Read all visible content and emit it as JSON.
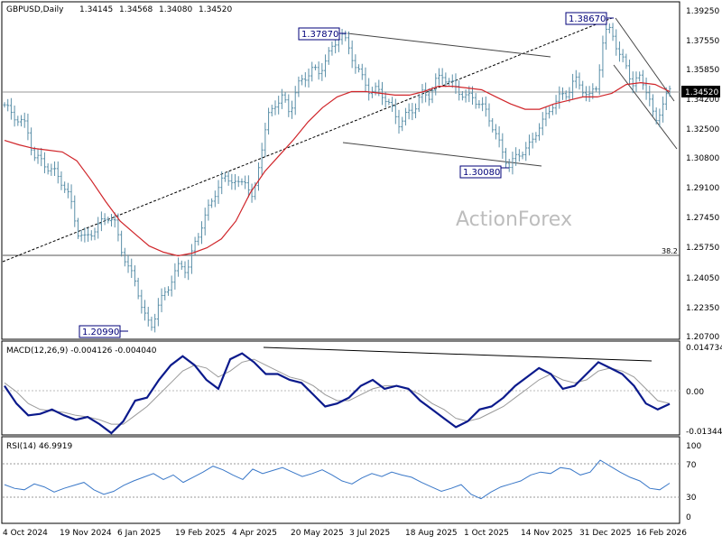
{
  "colors": {
    "background": "#ffffff",
    "bars": "#5a8fa8",
    "ma": "#d0252a",
    "trend": "#000000",
    "channel": "#444444",
    "macd_line": "#0b1a8c",
    "macd_signal": "#9a9a9a",
    "rsi_line": "#3a78c8",
    "callout_border": "#00007a",
    "price_box": "#000000",
    "price_box_text": "#ffffff"
  },
  "chart_data": [
    {
      "type": "ohlc",
      "title": "GBPUSD,Daily",
      "ohlc_header": [
        "1.34145",
        "1.34568",
        "1.34080",
        "1.34520"
      ],
      "current_price": "1.34520",
      "ylim": [
        1.207,
        1.3925
      ],
      "y_ticks": [
        "1.39250",
        "1.37550",
        "1.35850",
        "1.34200",
        "1.32500",
        "1.30800",
        "1.29100",
        "1.27450",
        "1.25750",
        "1.24050",
        "1.22350",
        "1.20700"
      ],
      "x_ticks": [
        "4 Oct 2024",
        "19 Nov 2024",
        "6 Jan 2025",
        "19 Feb 2025",
        "4 Apr 2025",
        "20 May 2025",
        "3 Jul 2025",
        "18 Aug 2025",
        "1 Oct 2025",
        "14 Nov 2025",
        "31 Dec 2025",
        "16 Feb 2026"
      ],
      "annotations": [
        {
          "label": "1.37870",
          "value": 1.3787
        },
        {
          "label": "1.38670",
          "value": 1.3867
        },
        {
          "label": "1.30080",
          "value": 1.3008
        },
        {
          "label": "1.20990",
          "value": 1.2099
        }
      ],
      "fib_level": {
        "label": "38.2",
        "value": 1.2545
      },
      "watermark": "ActionForex",
      "close_series": [
        1.3375,
        1.332,
        1.329,
        1.3255,
        1.3085,
        1.306,
        1.302,
        1.299,
        1.293,
        1.284,
        1.266,
        1.262,
        1.266,
        1.27,
        1.275,
        1.272,
        1.256,
        1.245,
        1.237,
        1.22,
        1.212,
        1.224,
        1.232,
        1.24,
        1.248,
        1.244,
        1.259,
        1.27,
        1.28,
        1.29,
        1.296,
        1.296,
        1.292,
        1.296,
        1.282,
        1.31,
        1.33,
        1.338,
        1.342,
        1.333,
        1.348,
        1.352,
        1.358,
        1.355,
        1.364,
        1.37,
        1.3787,
        1.37,
        1.36,
        1.352,
        1.345,
        1.346,
        1.342,
        1.335,
        1.327,
        1.332,
        1.335,
        1.344,
        1.342,
        1.351,
        1.354,
        1.35,
        1.346,
        1.342,
        1.342,
        1.338,
        1.333,
        1.323,
        1.312,
        1.303,
        1.308,
        1.312,
        1.315,
        1.325,
        1.33,
        1.338,
        1.342,
        1.344,
        1.352,
        1.347,
        1.342,
        1.348,
        1.376,
        1.382,
        1.365,
        1.361,
        1.348,
        1.354,
        1.344,
        1.327,
        1.338,
        1.3452
      ],
      "ma_series": [
        1.3175,
        1.315,
        1.313,
        1.312,
        1.311,
        1.306,
        1.295,
        1.283,
        1.272,
        1.265,
        1.258,
        1.2545,
        1.2525,
        1.254,
        1.257,
        1.262,
        1.272,
        1.288,
        1.3,
        1.309,
        1.318,
        1.328,
        1.336,
        1.342,
        1.345,
        1.345,
        1.344,
        1.343,
        1.343,
        1.345,
        1.348,
        1.348,
        1.347,
        1.346,
        1.342,
        1.338,
        1.335,
        1.335,
        1.338,
        1.34,
        1.342,
        1.342,
        1.344,
        1.349,
        1.35,
        1.349,
        1.345
      ],
      "trendline": {
        "from": {
          "x": "4 Oct 2024",
          "y": 1.251
        },
        "to": {
          "x": "31 Dec 2025",
          "y": 1.3867
        }
      },
      "channels": [
        {
          "name": "upper-a",
          "from": 1.3787,
          "to": 1.3655
        },
        {
          "name": "lower-a",
          "from": 1.327,
          "to": 1.304
        },
        {
          "name": "upper-b",
          "from": 1.3867,
          "to": 1.343
        },
        {
          "name": "lower-b",
          "from": 1.358,
          "to": 1.305
        }
      ]
    },
    {
      "type": "line",
      "title": "MACD(12,26,9) -0.004126 -0.004040",
      "y_ticks": [
        "0.014734",
        "0.00",
        "-0.013442"
      ],
      "ylim": [
        -0.0134,
        0.0147
      ],
      "series": [
        {
          "role": "macd",
          "values": [
            0.002,
            -0.004,
            -0.008,
            -0.0075,
            -0.006,
            -0.008,
            -0.0095,
            -0.0085,
            -0.011,
            -0.014,
            -0.01,
            -0.003,
            -0.002,
            0.004,
            0.009,
            0.012,
            0.009,
            0.004,
            0.001,
            0.011,
            0.013,
            0.01,
            0.006,
            0.006,
            0.004,
            0.003,
            -0.001,
            -0.005,
            -0.004,
            -0.002,
            0.002,
            0.004,
            0.001,
            0.002,
            0.001,
            -0.003,
            -0.006,
            -0.009,
            -0.012,
            -0.01,
            -0.006,
            -0.005,
            -0.002,
            0.002,
            0.005,
            0.008,
            0.006,
            0.001,
            0.002,
            0.006,
            0.01,
            0.008,
            0.006,
            0.002,
            -0.004,
            -0.006,
            -0.0041
          ]
        },
        {
          "role": "signal",
          "values": [
            0.003,
            0.0,
            -0.004,
            -0.006,
            -0.0065,
            -0.007,
            -0.008,
            -0.0085,
            -0.0095,
            -0.011,
            -0.011,
            -0.008,
            -0.005,
            -0.001,
            0.003,
            0.007,
            0.009,
            0.008,
            0.005,
            0.007,
            0.01,
            0.011,
            0.009,
            0.007,
            0.005,
            0.004,
            0.002,
            -0.001,
            -0.003,
            -0.003,
            -0.001,
            0.001,
            0.002,
            0.002,
            0.001,
            -0.001,
            -0.004,
            -0.006,
            -0.009,
            -0.01,
            -0.009,
            -0.007,
            -0.005,
            -0.002,
            0.001,
            0.004,
            0.006,
            0.004,
            0.003,
            0.004,
            0.007,
            0.008,
            0.007,
            0.005,
            0.001,
            -0.003,
            -0.004
          ]
        }
      ],
      "trendline": {
        "from": 0.0145,
        "to": 0.0104
      }
    },
    {
      "type": "line",
      "title": "RSI(14) 46.9919",
      "ylim": [
        0,
        100
      ],
      "y_ticks": [
        "100",
        "70",
        "30",
        "0"
      ],
      "levels": [
        70,
        30
      ],
      "values": [
        45,
        40,
        38,
        46,
        42,
        35,
        40,
        44,
        48,
        38,
        32,
        36,
        44,
        50,
        55,
        60,
        52,
        58,
        48,
        55,
        62,
        70,
        65,
        58,
        52,
        66,
        60,
        64,
        68,
        62,
        56,
        60,
        65,
        58,
        50,
        46,
        54,
        60,
        56,
        62,
        58,
        55,
        48,
        42,
        36,
        40,
        45,
        32,
        26,
        35,
        42,
        46,
        50,
        58,
        62,
        60,
        68,
        66,
        58,
        62,
        78,
        70,
        62,
        55,
        50,
        40,
        38,
        47
      ]
    }
  ]
}
